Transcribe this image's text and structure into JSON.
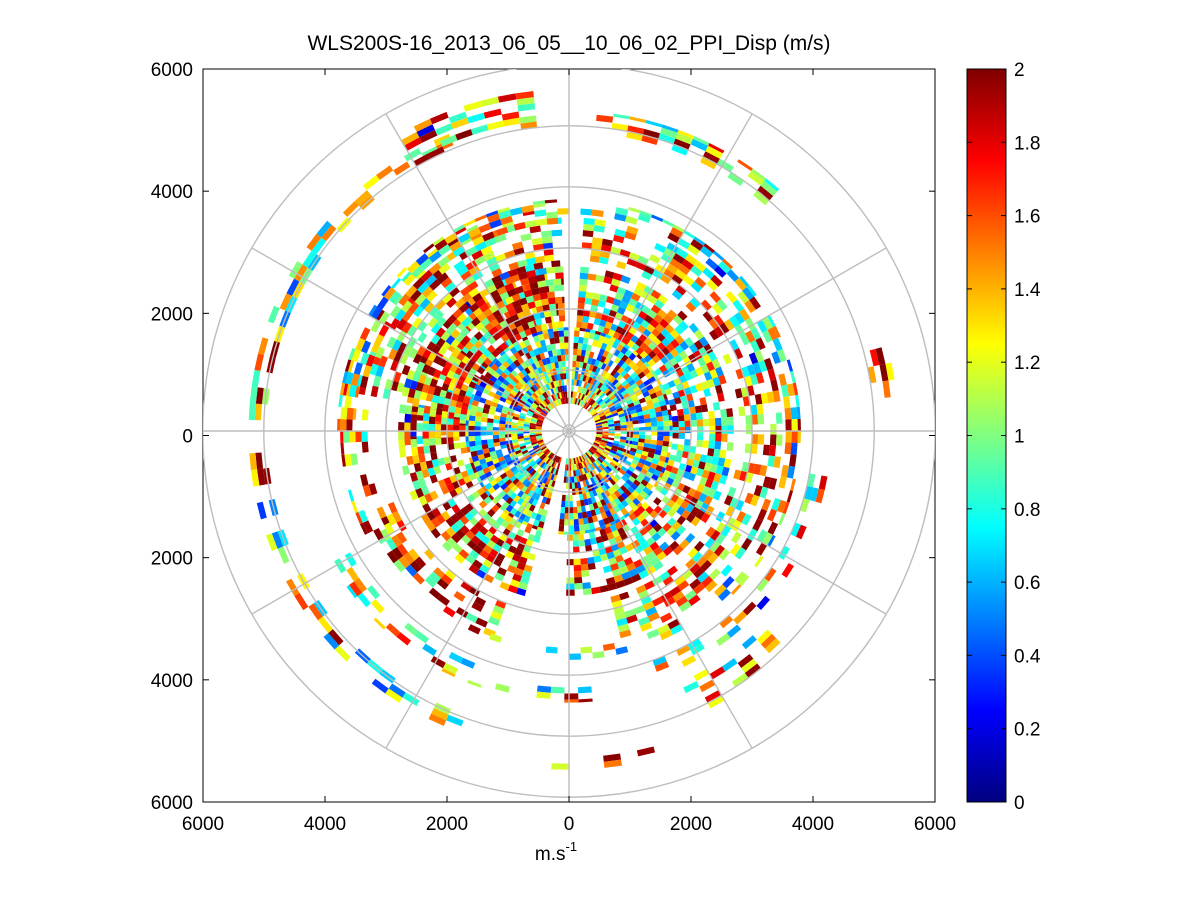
{
  "chart_data": {
    "type": "heatmap",
    "subtype": "polar PPI scan",
    "title": "WLS200S-16_2013_06_05__10_06_02_PPI_Disp (m/s)",
    "xlabel_base": "m.s",
    "xlabel_exp": "-1",
    "x_ticks": [
      "6000",
      "4000",
      "2000",
      "0",
      "2000",
      "4000",
      "6000"
    ],
    "y_ticks": [
      "6000",
      "4000",
      "2000",
      "0",
      "2000",
      "4000",
      "6000"
    ],
    "xlim": [
      -6000,
      6000
    ],
    "ylim": [
      -6000,
      6000
    ],
    "range_rings_m": [
      1000,
      2000,
      3000,
      4000,
      5000,
      6000
    ],
    "spoke_angles_deg": [
      0,
      30,
      60,
      90,
      120,
      150,
      180,
      210,
      240,
      270,
      300,
      330
    ],
    "colorbar": {
      "min": 0,
      "max": 2,
      "ticks": [
        "0",
        "0.2",
        "0.4",
        "0.6",
        "0.8",
        "1",
        "1.2",
        "1.4",
        "1.6",
        "1.8",
        "2"
      ],
      "colormap": "jet"
    },
    "gap_sectors_deg": [
      {
        "from": -2,
        "to": 2
      },
      {
        "from": 186,
        "to": 192
      }
    ],
    "range_bands": [
      {
        "r_from": 450,
        "r_to": 650,
        "arc_from": 0,
        "arc_to": 360,
        "density": 0.95,
        "mean": 1.5
      },
      {
        "r_from": 650,
        "r_to": 1700,
        "arc_from": 0,
        "arc_to": 360,
        "density": 0.9,
        "mean": 0.95
      },
      {
        "r_from": 1700,
        "r_to": 2700,
        "arc_from": -95,
        "arc_to": 180,
        "density": 0.78,
        "mean": 1.15
      },
      {
        "r_from": 1700,
        "r_to": 2800,
        "arc_from": 195,
        "arc_to": 355,
        "density": 0.7,
        "mean": 1.4
      },
      {
        "r_from": 2800,
        "r_to": 3500,
        "arc_from": -80,
        "arc_to": 165,
        "density": 0.55,
        "mean": 1.25
      },
      {
        "r_from": 3000,
        "r_to": 3600,
        "arc_from": 200,
        "arc_to": 250,
        "density": 0.35,
        "mean": 1.5
      },
      {
        "r_from": 3300,
        "r_to": 3750,
        "arc_from": 240,
        "arc_to": 355,
        "density": 0.45,
        "mean": 1.35
      },
      {
        "r_from": 3550,
        "r_to": 3800,
        "arc_from": -90,
        "arc_to": 140,
        "density": 0.6,
        "mean": 1.0
      },
      {
        "r_from": 3550,
        "r_to": 3750,
        "arc_from": 150,
        "arc_to": 205,
        "density": 0.5,
        "mean": 1.0
      },
      {
        "r_from": 4100,
        "r_to": 4450,
        "arc_from": 175,
        "arc_to": 240,
        "density": 0.35,
        "mean": 1.1
      },
      {
        "r_from": 4000,
        "r_to": 4300,
        "arc_from": 100,
        "arc_to": 160,
        "density": 0.3,
        "mean": 1.2
      },
      {
        "r_from": 4950,
        "r_to": 5250,
        "arc_from": 200,
        "arc_to": 340,
        "density": 0.4,
        "mean": 1.0
      },
      {
        "r_from": 4900,
        "r_to": 5250,
        "arc_from": 5,
        "arc_to": 40,
        "density": 0.5,
        "mean": 1.2
      },
      {
        "r_from": 5000,
        "r_to": 5600,
        "arc_from": -30,
        "arc_to": -8,
        "density": 0.45,
        "mean": 1.3
      },
      {
        "r_from": 5350,
        "r_to": 5550,
        "arc_from": 165,
        "arc_to": 190,
        "density": 0.35,
        "mean": 1.0
      },
      {
        "r_from": 4500,
        "r_to": 5100,
        "arc_from": 135,
        "arc_to": 155,
        "density": 0.4,
        "mean": 1.2
      },
      {
        "r_from": 5000,
        "r_to": 5400,
        "arc_from": 75,
        "arc_to": 82,
        "density": 0.6,
        "mean": 1.8
      }
    ]
  }
}
